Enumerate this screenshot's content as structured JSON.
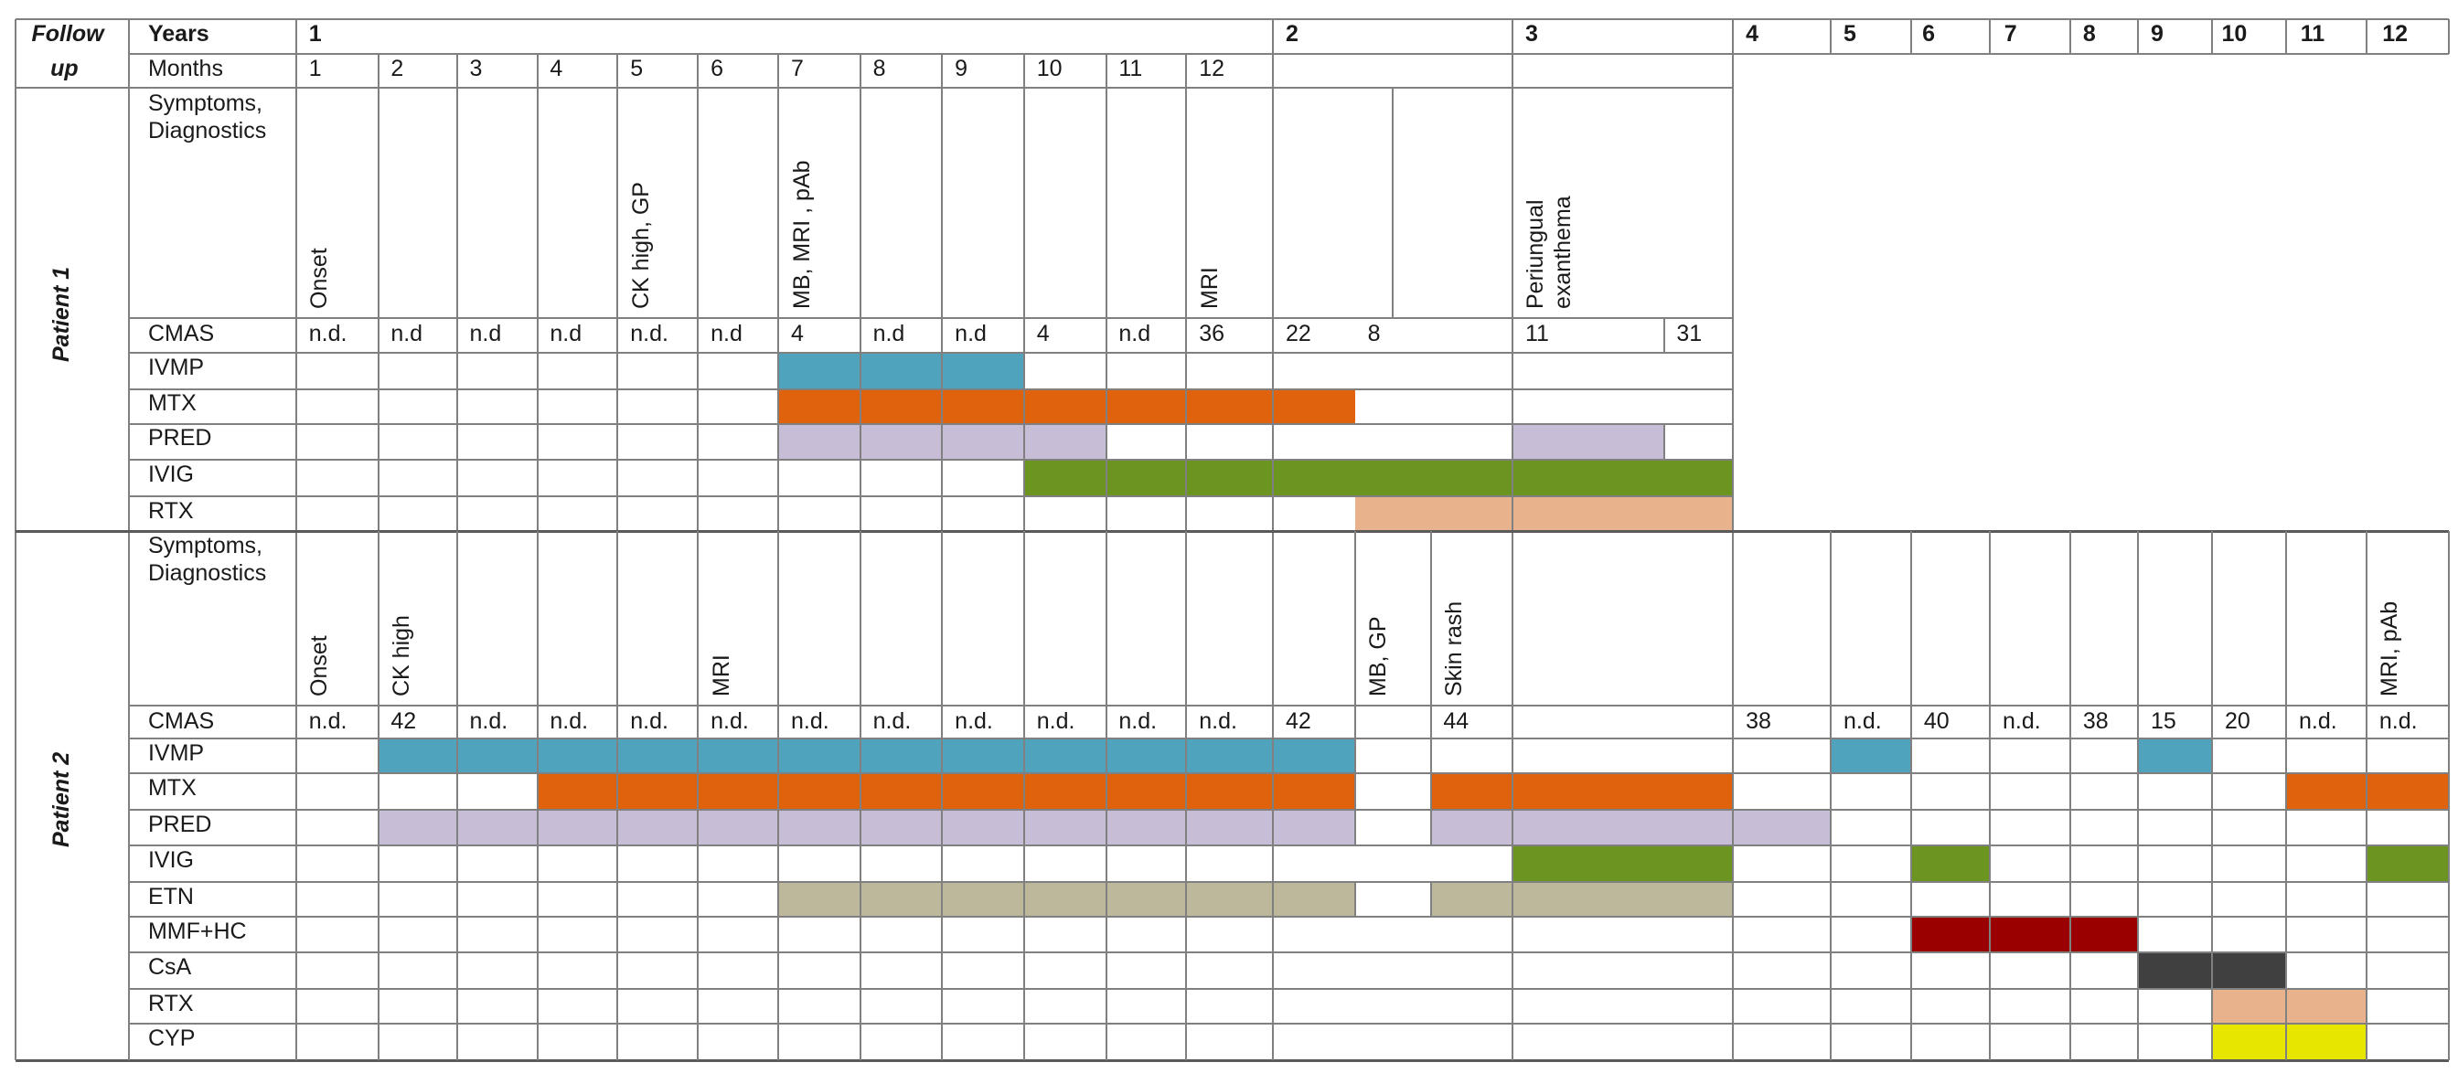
{
  "header": {
    "followup_line1": "Follow",
    "followup_line2": "up",
    "years_label": "Years",
    "months_label": "Months",
    "years": [
      "1",
      "2",
      "3",
      "4",
      "5",
      "6",
      "7",
      "8",
      "9",
      "10",
      "11",
      "12"
    ],
    "months": [
      "1",
      "2",
      "3",
      "4",
      "5",
      "6",
      "7",
      "8",
      "9",
      "10",
      "11",
      "12"
    ]
  },
  "colors": {
    "IVMP": "#4fa3bd",
    "MTX": "#e0620c",
    "PRED": "#c8bdd6",
    "IVIG": "#6b9420",
    "RTX": "#e8b28c",
    "ETN": "#bdb89c",
    "MMF+HC": "#9b0000",
    "CsA": "#404040",
    "CYP": "#e6e600"
  },
  "patients": [
    {
      "name": "Patient 1",
      "symptoms_label": "Symptoms,\nDiagnostics",
      "cmas_label": "CMAS",
      "symptoms": [
        {
          "col": 1,
          "text": "Onset"
        },
        {
          "col": 5,
          "text": "CK high, GP"
        },
        {
          "col": 7,
          "text": "MB, MRI , pAb"
        },
        {
          "col": 12,
          "text": "MRI"
        },
        {
          "col": 15,
          "text": "Periungual\nexanthema"
        }
      ],
      "cmas": [
        {
          "col": 1,
          "text": "n.d."
        },
        {
          "col": 2,
          "text": "n.d"
        },
        {
          "col": 3,
          "text": "n.d"
        },
        {
          "col": 4,
          "text": "n.d"
        },
        {
          "col": 5,
          "text": "n.d."
        },
        {
          "col": 6,
          "text": "n.d"
        },
        {
          "col": 7,
          "text": "4"
        },
        {
          "col": 8,
          "text": "n.d"
        },
        {
          "col": 9,
          "text": "n.d"
        },
        {
          "col": 10,
          "text": "4"
        },
        {
          "col": 11,
          "text": "n.d"
        },
        {
          "col": 12,
          "text": "36"
        },
        {
          "col": 13,
          "text": "22"
        },
        {
          "col": 14,
          "text": "8"
        },
        {
          "col": 15,
          "text": "11"
        },
        {
          "col": 16,
          "text": "31"
        }
      ],
      "treatments": [
        {
          "label": "IVMP",
          "segments": [
            [
              7,
              9
            ]
          ]
        },
        {
          "label": "MTX",
          "segments": [
            [
              7,
              13
            ]
          ]
        },
        {
          "label": "PRED",
          "segments": [
            [
              7,
              10
            ],
            [
              15,
              15
            ]
          ]
        },
        {
          "label": "IVIG",
          "segments": [
            [
              10,
              16
            ]
          ]
        },
        {
          "label": "RTX",
          "segments": [
            [
              14,
              16
            ]
          ]
        }
      ]
    },
    {
      "name": "Patient 2",
      "symptoms_label": "Symptoms,\nDiagnostics",
      "cmas_label": "CMAS",
      "symptoms": [
        {
          "col": 1,
          "text": "Onset"
        },
        {
          "col": 2,
          "text": "CK high"
        },
        {
          "col": 6,
          "text": "MRI"
        },
        {
          "col": 14,
          "text": "MB, GP"
        },
        {
          "col": 15,
          "text": "Skin rash"
        },
        {
          "col": 26,
          "text": "MRI, pAb"
        }
      ],
      "cmas": [
        {
          "col": 1,
          "text": "n.d."
        },
        {
          "col": 2,
          "text": "42"
        },
        {
          "col": 3,
          "text": "n.d."
        },
        {
          "col": 4,
          "text": "n.d."
        },
        {
          "col": 5,
          "text": "n.d."
        },
        {
          "col": 6,
          "text": "n.d."
        },
        {
          "col": 7,
          "text": "n.d."
        },
        {
          "col": 8,
          "text": "n.d."
        },
        {
          "col": 9,
          "text": "n.d."
        },
        {
          "col": 10,
          "text": "n.d."
        },
        {
          "col": 11,
          "text": "n.d."
        },
        {
          "col": 12,
          "text": "n.d."
        },
        {
          "col": 13,
          "text": "42"
        },
        {
          "col": 15,
          "text": "44"
        },
        {
          "col": 18,
          "text": "38"
        },
        {
          "col": 19,
          "text": "n.d."
        },
        {
          "col": 20,
          "text": "40"
        },
        {
          "col": 21,
          "text": "n.d."
        },
        {
          "col": 22,
          "text": "38"
        },
        {
          "col": 23,
          "text": "15"
        },
        {
          "col": 24,
          "text": "20"
        },
        {
          "col": 25,
          "text": "n.d."
        },
        {
          "col": 26,
          "text": "n.d."
        }
      ],
      "treatments": [
        {
          "label": "IVMP",
          "segments": [
            [
              2,
              13
            ],
            [
              19,
              19
            ],
            [
              23,
              23
            ]
          ]
        },
        {
          "label": "MTX",
          "segments": [
            [
              4,
              13
            ],
            [
              15,
              17
            ],
            [
              25,
              26
            ]
          ]
        },
        {
          "label": "PRED",
          "segments": [
            [
              2,
              13
            ],
            [
              15,
              18
            ]
          ]
        },
        {
          "label": "IVIG",
          "segments": [
            [
              16,
              17
            ],
            [
              20,
              20
            ],
            [
              26,
              26
            ]
          ]
        },
        {
          "label": "ETN",
          "segments": [
            [
              7,
              13
            ],
            [
              15,
              17
            ]
          ]
        },
        {
          "label": "MMF+HC",
          "segments": [
            [
              20,
              22
            ]
          ]
        },
        {
          "label": "CsA",
          "segments": [
            [
              23,
              24
            ]
          ]
        },
        {
          "label": "RTX",
          "segments": [
            [
              24,
              25
            ]
          ]
        },
        {
          "label": "CYP",
          "segments": [
            [
              24,
              25
            ]
          ]
        }
      ]
    }
  ]
}
